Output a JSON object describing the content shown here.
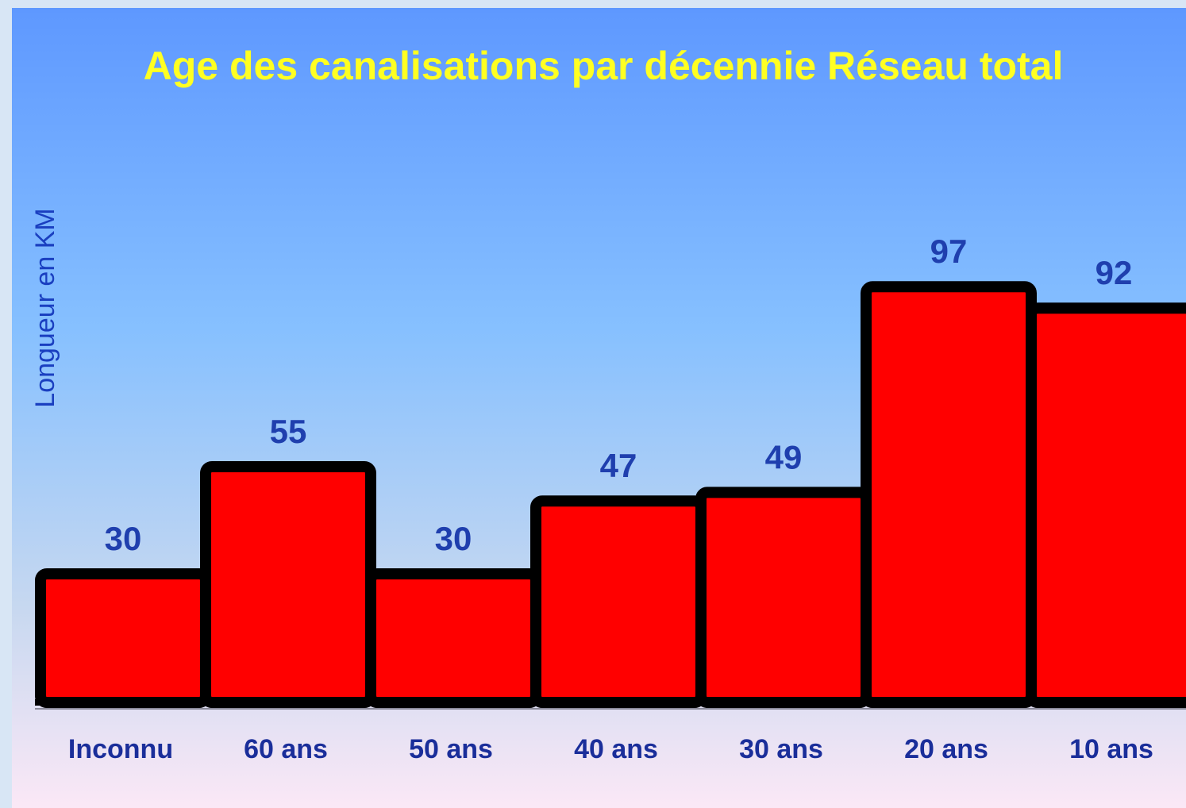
{
  "chart_data": {
    "type": "bar",
    "title": "Age des canalisations par décennie Réseau total",
    "y_label": "Longueur en KM",
    "categories": [
      "Inconnu",
      "60 ans",
      "50 ans",
      "40 ans",
      "30 ans",
      "20 ans",
      "10 ans"
    ],
    "values": [
      30,
      55,
      30,
      47,
      49,
      97,
      92
    ],
    "color": "#ff0000"
  }
}
